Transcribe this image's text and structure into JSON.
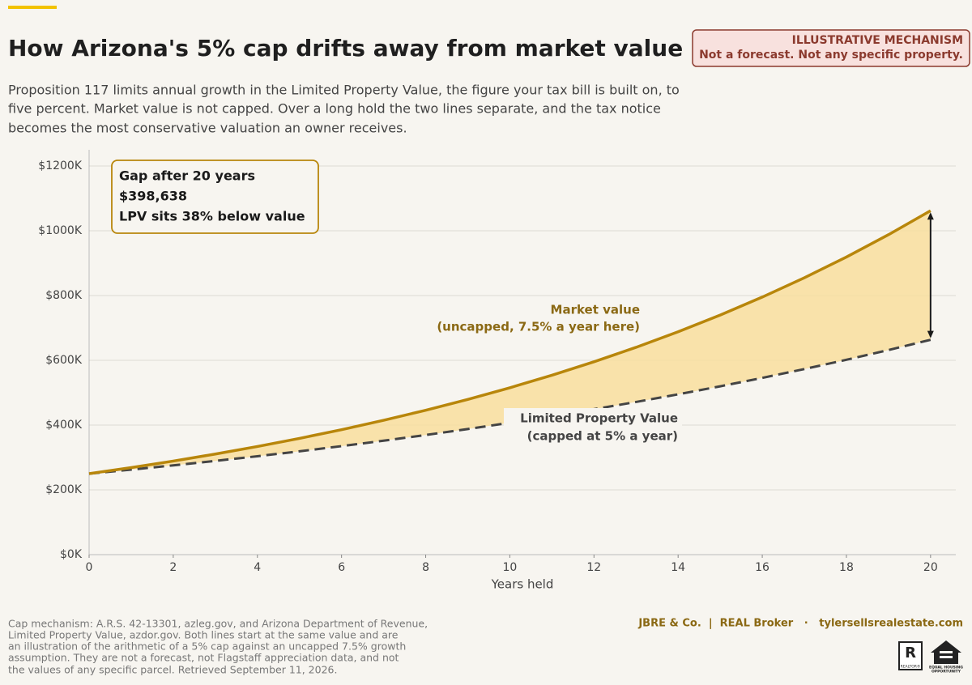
{
  "header": {
    "title": "How Arizona's 5% cap drifts away from market value",
    "badge": [
      "ILLUSTRATIVE MECHANISM",
      "Not a forecast. Not any specific property."
    ],
    "subtitle": [
      "Proposition 117 limits annual growth in the Limited Property Value, the figure your tax bill is built on, to",
      "five percent. Market value is not capped. Over a long hold the two lines separate, and the tax notice",
      "becomes the most conservative valuation an owner receives."
    ]
  },
  "chart_data": {
    "type": "line",
    "x_label": "Years held",
    "x": [
      0,
      1,
      2,
      3,
      4,
      5,
      6,
      7,
      8,
      9,
      10,
      11,
      12,
      13,
      14,
      15,
      16,
      17,
      18,
      19,
      20
    ],
    "series": [
      {
        "name": "Market value",
        "description": "(uncapped, 7.5% a year here)",
        "color": "#b8860b",
        "dashed": false,
        "values": [
          250000,
          268750,
          288906,
          310574,
          333867,
          358907,
          385825,
          414762,
          445869,
          479310,
          515258,
          553902,
          595445,
          640103,
          688111,
          739719,
          795198,
          854838,
          918951,
          987872,
          1061963
        ]
      },
      {
        "name": "Limited Property Value",
        "description": "(capped at 5% a year)",
        "color": "#444444",
        "dashed": true,
        "values": [
          250000,
          262500,
          275625,
          289406,
          303877,
          319070,
          335024,
          351775,
          369364,
          387832,
          407224,
          427585,
          448964,
          471412,
          494983,
          519732,
          545719,
          573005,
          601655,
          631738,
          663324
        ]
      }
    ],
    "fill_color": "#f9dd98",
    "xlim": [
      0,
      20.6
    ],
    "xticks": [
      0,
      2,
      4,
      6,
      8,
      10,
      12,
      14,
      16,
      18,
      20
    ],
    "ylim": [
      0,
      1250000
    ],
    "yticks": [
      {
        "value": 0,
        "label": "$0K"
      },
      {
        "value": 200000,
        "label": "$200K"
      },
      {
        "value": 400000,
        "label": "$400K"
      },
      {
        "value": 600000,
        "label": "$600K"
      },
      {
        "value": 800000,
        "label": "$800K"
      },
      {
        "value": 1000000,
        "label": "$1000K"
      },
      {
        "value": 1200000,
        "label": "$1200K"
      }
    ],
    "grid": true,
    "annotation": [
      "Gap after 20 years",
      "$398,638",
      "LPV sits 38% below value"
    ]
  },
  "footer": {
    "source": [
      "Cap mechanism: A.R.S. 42-13301, azleg.gov, and Arizona Department of Revenue,",
      "Limited Property Value, azdor.gov. Both lines start at the same value and are",
      "an illustration of the arithmetic of a 5% cap against an uncapped 7.5% growth",
      "assumption. They are not a forecast, not Flagstaff appreciation data, and not",
      "the values of any specific parcel. Retrieved September 11, 2026."
    ],
    "brand": "JBRE & Co.  |  REAL Broker   ·   tylersellsrealestate.com",
    "logos": [
      "R",
      "REALTOR®",
      "EQUAL HOUSING",
      "OPPORTUNITY"
    ]
  }
}
